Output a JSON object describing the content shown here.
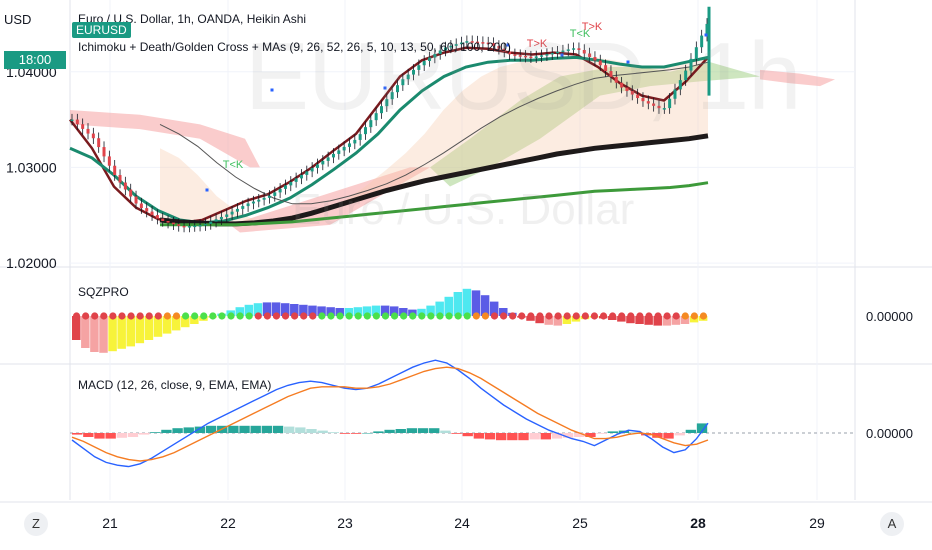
{
  "header": {
    "currency": "USD",
    "title": "Euro / U.S. Dollar, 1h, OANDA, Heikin Ashi",
    "symbol_badge": "EURUSD",
    "time_badge": "18:00",
    "indicators": "Ichimoku + Death/Golden Cross + MAs (9, 26, 52, 26, 5, 10, 13, 50, 60, 100, 200)"
  },
  "watermark": {
    "symbol": "EURUSD, 1h",
    "name": "Euro / U.S. Dollar"
  },
  "annotations": [
    "T<K",
    "T>K",
    "T<K",
    "T>K"
  ],
  "panes": {
    "sqz": {
      "title": "SQZPRO",
      "zero_label": "0.00000"
    },
    "macd": {
      "title": "MACD (12, 26, close, 9, EMA, EMA)",
      "zero_label": "0.00000"
    }
  },
  "controls": {
    "left": "Z",
    "right": "A"
  },
  "colors": {
    "bull": "#1a9a83",
    "bear": "#e0434a",
    "cyan": "#4ee8f0",
    "blue_bar": "#5b5ce6",
    "yellow": "#f7f33a",
    "macd": "#2962ff",
    "signal": "#f57c22",
    "cloud_red": "#f5a3a3",
    "cloud_green": "#a5d28a"
  },
  "chart_data": [
    {
      "type": "candlestick",
      "title": "Euro / U.S. Dollar, 1h, OANDA, Heikin Ashi",
      "x_ticks": [
        "21",
        "22",
        "23",
        "24",
        "25",
        "28",
        "29"
      ],
      "y_ticks": [
        "1.04000",
        "1.03000",
        "1.02000"
      ],
      "ylim": [
        1.0198,
        1.0475
      ],
      "last_price_time": "18:00",
      "approx_close": [
        1.035,
        1.033,
        1.029,
        1.026,
        1.0245,
        1.0238,
        1.024,
        1.025,
        1.0262,
        1.027,
        1.0285,
        1.03,
        1.0315,
        1.033,
        1.036,
        1.039,
        1.041,
        1.0425,
        1.0432,
        1.043,
        1.0418,
        1.0415,
        1.042,
        1.0425,
        1.041,
        1.0385,
        1.037,
        1.036,
        1.04,
        1.045
      ],
      "moving_averages": [
        {
          "name": "9",
          "color": "#7a1a1e",
          "values": [
            1.035,
            1.032,
            1.028,
            1.0258,
            1.0246,
            1.0242,
            1.0245,
            1.0255,
            1.0265,
            1.0272,
            1.0285,
            1.03,
            1.0318,
            1.0335,
            1.0365,
            1.0395,
            1.0412,
            1.042,
            1.0425,
            1.0424,
            1.042,
            1.0418,
            1.042,
            1.0418,
            1.0405,
            1.0388,
            1.0375,
            1.037,
            1.039,
            1.0415
          ]
        },
        {
          "name": "26",
          "color": "#1a8a6e",
          "values": [
            1.032,
            1.031,
            1.0292,
            1.027,
            1.0255,
            1.0245,
            1.0242,
            1.0244,
            1.025,
            1.0258,
            1.0268,
            1.0282,
            1.0298,
            1.0315,
            1.0335,
            1.036,
            1.038,
            1.0395,
            1.0405,
            1.041,
            1.0412,
            1.0412,
            1.0414,
            1.0415,
            1.0412,
            1.0408,
            1.0405,
            1.0405,
            1.041,
            1.0415
          ]
        },
        {
          "name": "100",
          "color": "#555555",
          "values": [
            1.0345,
            1.0335,
            1.0322,
            1.0305,
            1.029,
            1.0278,
            1.0268,
            1.0262,
            1.0262,
            1.0265,
            1.027,
            1.0276,
            1.0283,
            1.0292,
            1.0303,
            1.0315,
            1.0328,
            1.0341,
            1.0353,
            1.0363,
            1.0372,
            1.038,
            1.0387,
            1.0393,
            1.0396,
            1.0398,
            1.04,
            1.0402,
            1.0405,
            1.041
          ]
        },
        {
          "name": "200",
          "color": "#1e1a1a",
          "values": [
            1.0245,
            1.0243,
            1.0242,
            1.0241,
            1.0241,
            1.0242,
            1.0244,
            1.0247,
            1.0252,
            1.0258,
            1.0264,
            1.027,
            1.0276,
            1.0281,
            1.0286,
            1.029,
            1.0294,
            1.0298,
            1.0302,
            1.0306,
            1.031,
            1.0314,
            1.0317,
            1.032,
            1.0322,
            1.0324,
            1.0326,
            1.0328,
            1.033,
            1.0333
          ]
        },
        {
          "name": "50",
          "color": "#3d9a3a",
          "values": [
            1.024,
            1.024,
            1.024,
            1.024,
            1.024,
            1.0241,
            1.0242,
            1.0243,
            1.0245,
            1.0247,
            1.0249,
            1.0251,
            1.0253,
            1.0255,
            1.0257,
            1.0259,
            1.0261,
            1.0263,
            1.0265,
            1.0267,
            1.0269,
            1.0271,
            1.0273,
            1.0275,
            1.0276,
            1.0277,
            1.0278,
            1.0279,
            1.0281,
            1.0284
          ]
        }
      ]
    },
    {
      "type": "bar",
      "title": "SQZPRO",
      "values": [
        -3,
        -4,
        -4.5,
        -4.6,
        -4.4,
        -4.1,
        -3.8,
        -3.4,
        -3.0,
        -2.6,
        -2.2,
        -1.8,
        -1.4,
        -1.0,
        -0.6,
        -0.2,
        0.3,
        0.7,
        1.1,
        1.4,
        1.6,
        1.7,
        1.7,
        1.6,
        1.5,
        1.4,
        1.3,
        1.2,
        1.1,
        1.0,
        1.0,
        1.1,
        1.2,
        1.3,
        1.3,
        1.2,
        1.0,
        0.8,
        0.9,
        1.3,
        1.8,
        2.4,
        3.0,
        3.4,
        3.2,
        2.6,
        1.8,
        1.0,
        0.4,
        -0.2,
        -0.6,
        -0.9,
        -1.1,
        -1.2,
        -1.0,
        -0.7,
        -0.4,
        -0.2,
        -0.3,
        -0.5,
        -0.7,
        -0.9,
        -1.0,
        -1.1,
        -1.2,
        -1.2,
        -1.1,
        -1.0,
        -0.8,
        -0.6
      ],
      "colors": [
        "#e0434a",
        "#f5a3a3",
        "#f5a3a3",
        "#f5a3a3",
        "#f7f33a",
        "#f7f33a",
        "#f7f33a",
        "#f7f33a",
        "#f7f33a",
        "#f7f33a",
        "#f7f33a",
        "#f7f33a",
        "#f7f33a",
        "#f7f33a",
        "#f7f33a",
        "#f7f33a",
        "#4ee8f0",
        "#4ee8f0",
        "#4ee8f0",
        "#4ee8f0",
        "#4ee8f0",
        "#5b5ce6",
        "#5b5ce6",
        "#5b5ce6",
        "#5b5ce6",
        "#5b5ce6",
        "#5b5ce6",
        "#5b5ce6",
        "#5b5ce6",
        "#5b5ce6",
        "#4ee8f0",
        "#4ee8f0",
        "#4ee8f0",
        "#4ee8f0",
        "#5b5ce6",
        "#5b5ce6",
        "#5b5ce6",
        "#5b5ce6",
        "#4ee8f0",
        "#4ee8f0",
        "#4ee8f0",
        "#4ee8f0",
        "#4ee8f0",
        "#4ee8f0",
        "#5b5ce6",
        "#5b5ce6",
        "#5b5ce6",
        "#5b5ce6",
        "#5b5ce6",
        "#e0434a",
        "#e0434a",
        "#e0434a",
        "#f5a3a3",
        "#f5a3a3",
        "#f7f33a",
        "#f7f33a",
        "#f7f33a",
        "#f7f33a",
        "#e0434a",
        "#e0434a",
        "#e0434a",
        "#e0434a",
        "#e0434a",
        "#e0434a",
        "#e0434a",
        "#f5a3a3",
        "#f5a3a3",
        "#f5a3a3",
        "#f7f33a",
        "#f7f33a"
      ],
      "dot_colors": [
        "#e0434a",
        "#e0434a",
        "#e0434a",
        "#e0434a",
        "#e0434a",
        "#e0434a",
        "#e0434a",
        "#e0434a",
        "#e0434a",
        "#e0434a",
        "#f58a22",
        "#f58a22",
        "#4be04b",
        "#4be04b",
        "#4be04b",
        "#4be04b",
        "#4be04b",
        "#4be04b",
        "#4be04b",
        "#4be04b",
        "#e0434a",
        "#e0434a",
        "#e0434a",
        "#e0434a",
        "#e0434a",
        "#e0434a",
        "#e0434a",
        "#4be04b",
        "#4be04b",
        "#4be04b",
        "#4be04b",
        "#4be04b",
        "#4be04b",
        "#4be04b",
        "#4be04b",
        "#4be04b",
        "#4be04b",
        "#4be04b",
        "#4be04b",
        "#4be04b",
        "#4be04b",
        "#4be04b",
        "#4be04b",
        "#4be04b",
        "#f58a22",
        "#f58a22",
        "#e0434a",
        "#e0434a",
        "#e0434a",
        "#e0434a",
        "#e0434a",
        "#e0434a",
        "#e0434a",
        "#e0434a",
        "#e0434a",
        "#e0434a",
        "#e0434a",
        "#e0434a",
        "#e0434a",
        "#e0434a",
        "#e0434a",
        "#e0434a",
        "#e0434a",
        "#e0434a",
        "#e0434a",
        "#e0434a",
        "#e0434a",
        "#f58a22",
        "#f58a22",
        "#f58a22"
      ]
    },
    {
      "type": "line",
      "title": "MACD (12, 26, close, 9, EMA, EMA)",
      "series": [
        {
          "name": "MACD",
          "values": [
            -0.5,
            -1.1,
            -1.7,
            -2.1,
            -2.3,
            -2.4,
            -2.2,
            -1.8,
            -1.3,
            -0.8,
            -0.3,
            0.2,
            0.7,
            1.1,
            1.5,
            1.9,
            2.3,
            2.7,
            3.1,
            3.4,
            3.6,
            3.7,
            3.6,
            3.4,
            3.2,
            3.1,
            3.2,
            3.5,
            3.9,
            4.3,
            4.7,
            5.0,
            5.2,
            5.0,
            4.5,
            3.9,
            3.2,
            2.6,
            2.0,
            1.5,
            1.0,
            0.6,
            0.2,
            -0.1,
            -0.4,
            -0.6,
            -0.9,
            -0.5,
            -0.1,
            0.2,
            0.1,
            -0.4,
            -1.0,
            -1.4,
            -1.2,
            -0.4,
            0.7
          ]
        },
        {
          "name": "Signal",
          "values": [
            -0.3,
            -0.6,
            -1.0,
            -1.4,
            -1.7,
            -1.9,
            -2.0,
            -1.9,
            -1.7,
            -1.4,
            -1.0,
            -0.6,
            -0.2,
            0.2,
            0.6,
            1.0,
            1.4,
            1.8,
            2.2,
            2.6,
            2.9,
            3.2,
            3.3,
            3.3,
            3.3,
            3.2,
            3.2,
            3.3,
            3.5,
            3.8,
            4.1,
            4.4,
            4.6,
            4.7,
            4.6,
            4.3,
            3.9,
            3.4,
            2.9,
            2.4,
            1.9,
            1.4,
            1.0,
            0.6,
            0.2,
            -0.1,
            -0.4,
            -0.4,
            -0.3,
            -0.1,
            0.0,
            -0.1,
            -0.4,
            -0.7,
            -0.9,
            -0.8,
            -0.5
          ]
        }
      ],
      "histogram": [
        -0.2,
        -0.5,
        -0.7,
        -0.7,
        -0.6,
        -0.5,
        -0.2,
        0.1,
        0.4,
        0.6,
        0.7,
        0.8,
        0.9,
        0.9,
        0.9,
        0.9,
        0.9,
        0.9,
        0.9,
        0.8,
        0.7,
        0.5,
        0.3,
        0.1,
        -0.1,
        -0.1,
        0.0,
        0.2,
        0.4,
        0.5,
        0.6,
        0.6,
        0.6,
        0.3,
        -0.1,
        -0.4,
        -0.7,
        -0.8,
        -0.9,
        -0.9,
        -0.9,
        -0.8,
        -0.8,
        -0.7,
        -0.6,
        -0.5,
        -0.5,
        -0.1,
        0.2,
        0.3,
        0.1,
        -0.3,
        -0.6,
        -0.7,
        -0.3,
        0.4,
        1.2
      ]
    }
  ]
}
